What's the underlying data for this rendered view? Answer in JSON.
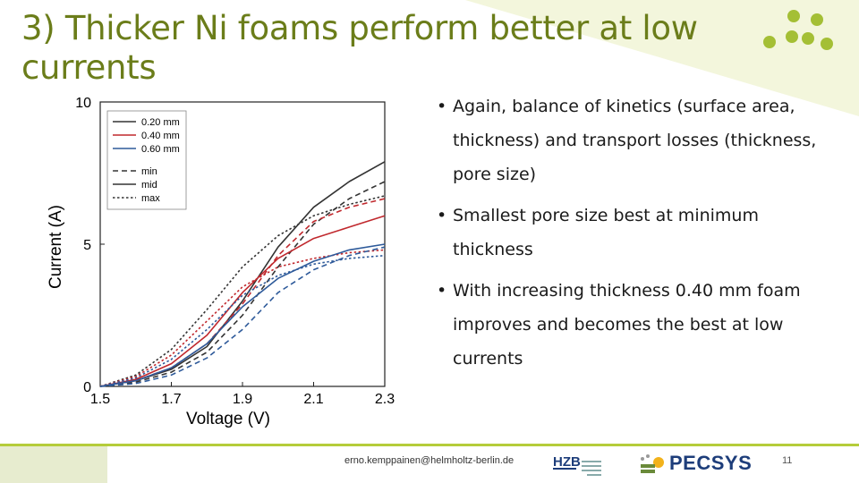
{
  "slide": {
    "title": "3) Thicker Ni foams perform better at low currents",
    "bullets": [
      "Again, balance of kinetics (surface area, thickness) and transport losses (thickness, pore size)",
      "Smallest pore size best at minimum thickness",
      "With increasing thickness 0.40 mm foam improves and becomes the best at low currents"
    ],
    "footer": {
      "email": "erno.kemppainen@helmholtz-berlin.de",
      "hzb_logo_text": "HZB",
      "pecsys_logo_text": "PECSYS",
      "page_number": "11"
    },
    "colors": {
      "title": "#6b7d1a",
      "accent_green": "#8fb52a",
      "band": "#f2f5d8",
      "black_series": "#333333",
      "red_series": "#c0282d",
      "blue_series": "#2e5a9a"
    }
  },
  "chart_data": {
    "type": "line",
    "xlabel": "Voltage (V)",
    "ylabel": "Current (A)",
    "xlim": [
      1.5,
      2.3
    ],
    "ylim": [
      0,
      10
    ],
    "xticks": [
      1.5,
      1.7,
      1.9,
      2.1,
      2.3
    ],
    "yticks": [
      0,
      5,
      10
    ],
    "legend_position": "top-left",
    "legend_colors": [
      {
        "label": "0.20 mm",
        "color": "#333333"
      },
      {
        "label": "0.40 mm",
        "color": "#c0282d"
      },
      {
        "label": "0.60 mm",
        "color": "#2e5a9a"
      }
    ],
    "legend_styles": [
      {
        "label": "min",
        "dash": "dashed"
      },
      {
        "label": "mid",
        "dash": "solid"
      },
      {
        "label": "max",
        "dash": "dotted"
      }
    ],
    "series": [
      {
        "color": "black",
        "style": "solid",
        "x": [
          1.5,
          1.6,
          1.7,
          1.8,
          1.9,
          2.0,
          2.1,
          2.2,
          2.3
        ],
        "y": [
          0,
          0.2,
          0.6,
          1.4,
          3.0,
          4.9,
          6.3,
          7.2,
          7.9
        ]
      },
      {
        "color": "black",
        "style": "dashed",
        "x": [
          1.5,
          1.6,
          1.7,
          1.8,
          1.9,
          2.0,
          2.1,
          2.2,
          2.3
        ],
        "y": [
          0,
          0.15,
          0.5,
          1.2,
          2.5,
          4.2,
          5.7,
          6.6,
          7.2
        ]
      },
      {
        "color": "black",
        "style": "dotted",
        "x": [
          1.5,
          1.6,
          1.7,
          1.8,
          1.9,
          2.0,
          2.1,
          2.2,
          2.3
        ],
        "y": [
          0,
          0.4,
          1.3,
          2.7,
          4.2,
          5.3,
          6.0,
          6.4,
          6.7
        ]
      },
      {
        "color": "red",
        "style": "solid",
        "x": [
          1.5,
          1.6,
          1.7,
          1.8,
          1.9,
          2.0,
          2.1,
          2.2,
          2.3
        ],
        "y": [
          0,
          0.25,
          0.8,
          1.8,
          3.3,
          4.5,
          5.2,
          5.6,
          6.0
        ]
      },
      {
        "color": "red",
        "style": "dashed",
        "x": [
          1.5,
          1.6,
          1.7,
          1.8,
          1.9,
          2.0,
          2.1,
          2.2,
          2.3
        ],
        "y": [
          0,
          0.2,
          0.65,
          1.5,
          2.9,
          4.6,
          5.8,
          6.3,
          6.6
        ]
      },
      {
        "color": "red",
        "style": "dotted",
        "x": [
          1.5,
          1.6,
          1.7,
          1.8,
          1.9,
          2.0,
          2.1,
          2.2,
          2.3
        ],
        "y": [
          0,
          0.35,
          1.1,
          2.3,
          3.5,
          4.2,
          4.5,
          4.7,
          4.8
        ]
      },
      {
        "color": "blue",
        "style": "solid",
        "x": [
          1.5,
          1.6,
          1.7,
          1.8,
          1.9,
          2.0,
          2.1,
          2.2,
          2.3
        ],
        "y": [
          0,
          0.2,
          0.65,
          1.5,
          2.8,
          3.8,
          4.4,
          4.8,
          5.0
        ]
      },
      {
        "color": "blue",
        "style": "dashed",
        "x": [
          1.5,
          1.6,
          1.7,
          1.8,
          1.9,
          2.0,
          2.1,
          2.2,
          2.3
        ],
        "y": [
          0,
          0.1,
          0.4,
          1.0,
          2.0,
          3.3,
          4.1,
          4.6,
          4.9
        ]
      },
      {
        "color": "blue",
        "style": "dotted",
        "x": [
          1.5,
          1.6,
          1.7,
          1.8,
          1.9,
          2.0,
          2.1,
          2.2,
          2.3
        ],
        "y": [
          0,
          0.3,
          0.95,
          2.0,
          3.2,
          3.9,
          4.3,
          4.5,
          4.6
        ]
      }
    ]
  }
}
